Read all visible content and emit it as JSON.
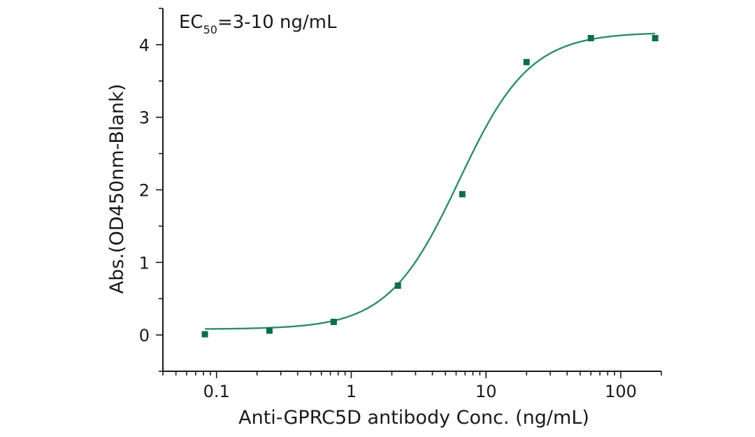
{
  "chart_data": {
    "type": "scatter",
    "title": "",
    "annotation": {
      "prefix": "EC",
      "subscript": "50",
      "suffix": "=3-10 ng/mL"
    },
    "xlabel": "Anti-GPRC5D antibody Conc. (ng/mL)",
    "ylabel": "Abs.(OD450nm-Blank)",
    "x_scale": "log",
    "xlim": [
      0.04,
      200
    ],
    "ylim": [
      -0.5,
      4.5
    ],
    "x_ticks": [
      0.1,
      1,
      10,
      100
    ],
    "x_tick_labels": [
      "0.1",
      "1",
      "10",
      "100"
    ],
    "y_ticks": [
      0,
      1,
      2,
      3,
      4
    ],
    "y_tick_labels": [
      "0",
      "1",
      "2",
      "3",
      "4"
    ],
    "grid": false,
    "series": [
      {
        "x": [
          0.082,
          0.247,
          0.741,
          2.22,
          6.67,
          20,
          60,
          180
        ],
        "y": [
          0.01,
          0.06,
          0.18,
          0.68,
          1.94,
          3.76,
          4.09,
          4.09
        ]
      }
    ],
    "fit": {
      "bottom": 0.08,
      "top": 4.17,
      "ec50": 6.3,
      "hill": 1.65
    },
    "colors": {
      "points": "#116b4e",
      "curve": "#2e8b6f",
      "axis": "#1a1a1a"
    }
  }
}
